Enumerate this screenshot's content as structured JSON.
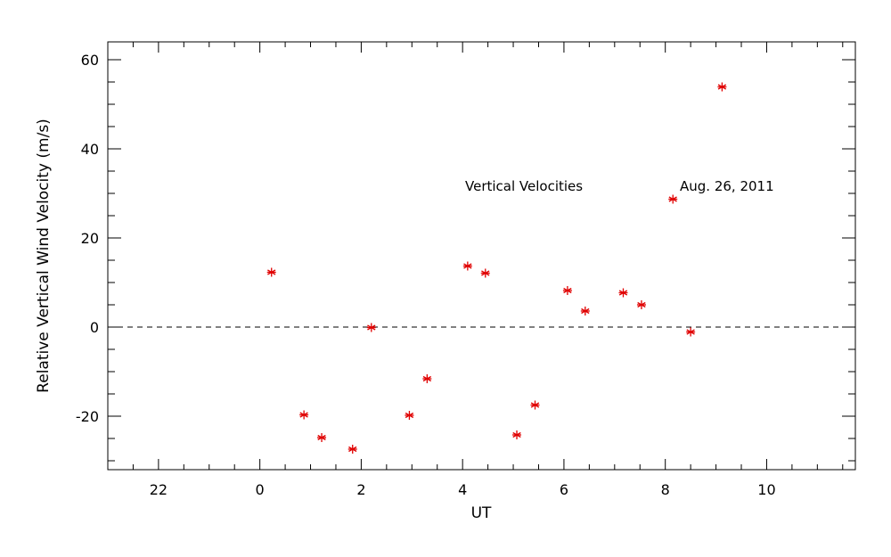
{
  "chart_data": {
    "type": "scatter",
    "title": "",
    "xlabel": "UT",
    "ylabel": "Relative Vertical Wind Velocity (m/s)",
    "x_unit_note": "UT hours; ticks wrap past midnight",
    "xlim": [
      "21:00 (day before)",
      "11:45"
    ],
    "ylim": [
      -32,
      64
    ],
    "x_tick_labels": [
      "22",
      "0",
      "2",
      "4",
      "6",
      "8",
      "10"
    ],
    "y_tick_labels": [
      "-20",
      "0",
      "20",
      "40",
      "60"
    ],
    "y_ticks": [
      -20,
      0,
      20,
      40,
      60
    ],
    "reference_line": {
      "y": 0,
      "style": "dashed"
    },
    "marker": "asterisk",
    "marker_color": "#e00000",
    "annotations": [
      "Vertical Velocities",
      "Aug. 26, 2011"
    ],
    "points": [
      {
        "x": 0.23,
        "y": 12.3
      },
      {
        "x": 0.87,
        "y": -19.7
      },
      {
        "x": 1.22,
        "y": -24.8
      },
      {
        "x": 1.83,
        "y": -27.4
      },
      {
        "x": 2.2,
        "y": -0.1
      },
      {
        "x": 2.95,
        "y": -19.8
      },
      {
        "x": 3.3,
        "y": -11.6
      },
      {
        "x": 4.1,
        "y": 13.7
      },
      {
        "x": 4.45,
        "y": 12.1
      },
      {
        "x": 5.07,
        "y": -24.2
      },
      {
        "x": 5.43,
        "y": -17.5
      },
      {
        "x": 6.07,
        "y": 8.2
      },
      {
        "x": 6.42,
        "y": 3.6
      },
      {
        "x": 7.17,
        "y": 7.7
      },
      {
        "x": 7.53,
        "y": 5.0
      },
      {
        "x": 8.15,
        "y": 28.7
      },
      {
        "x": 8.5,
        "y": -1.1
      },
      {
        "x": 9.12,
        "y": 53.9
      }
    ]
  }
}
